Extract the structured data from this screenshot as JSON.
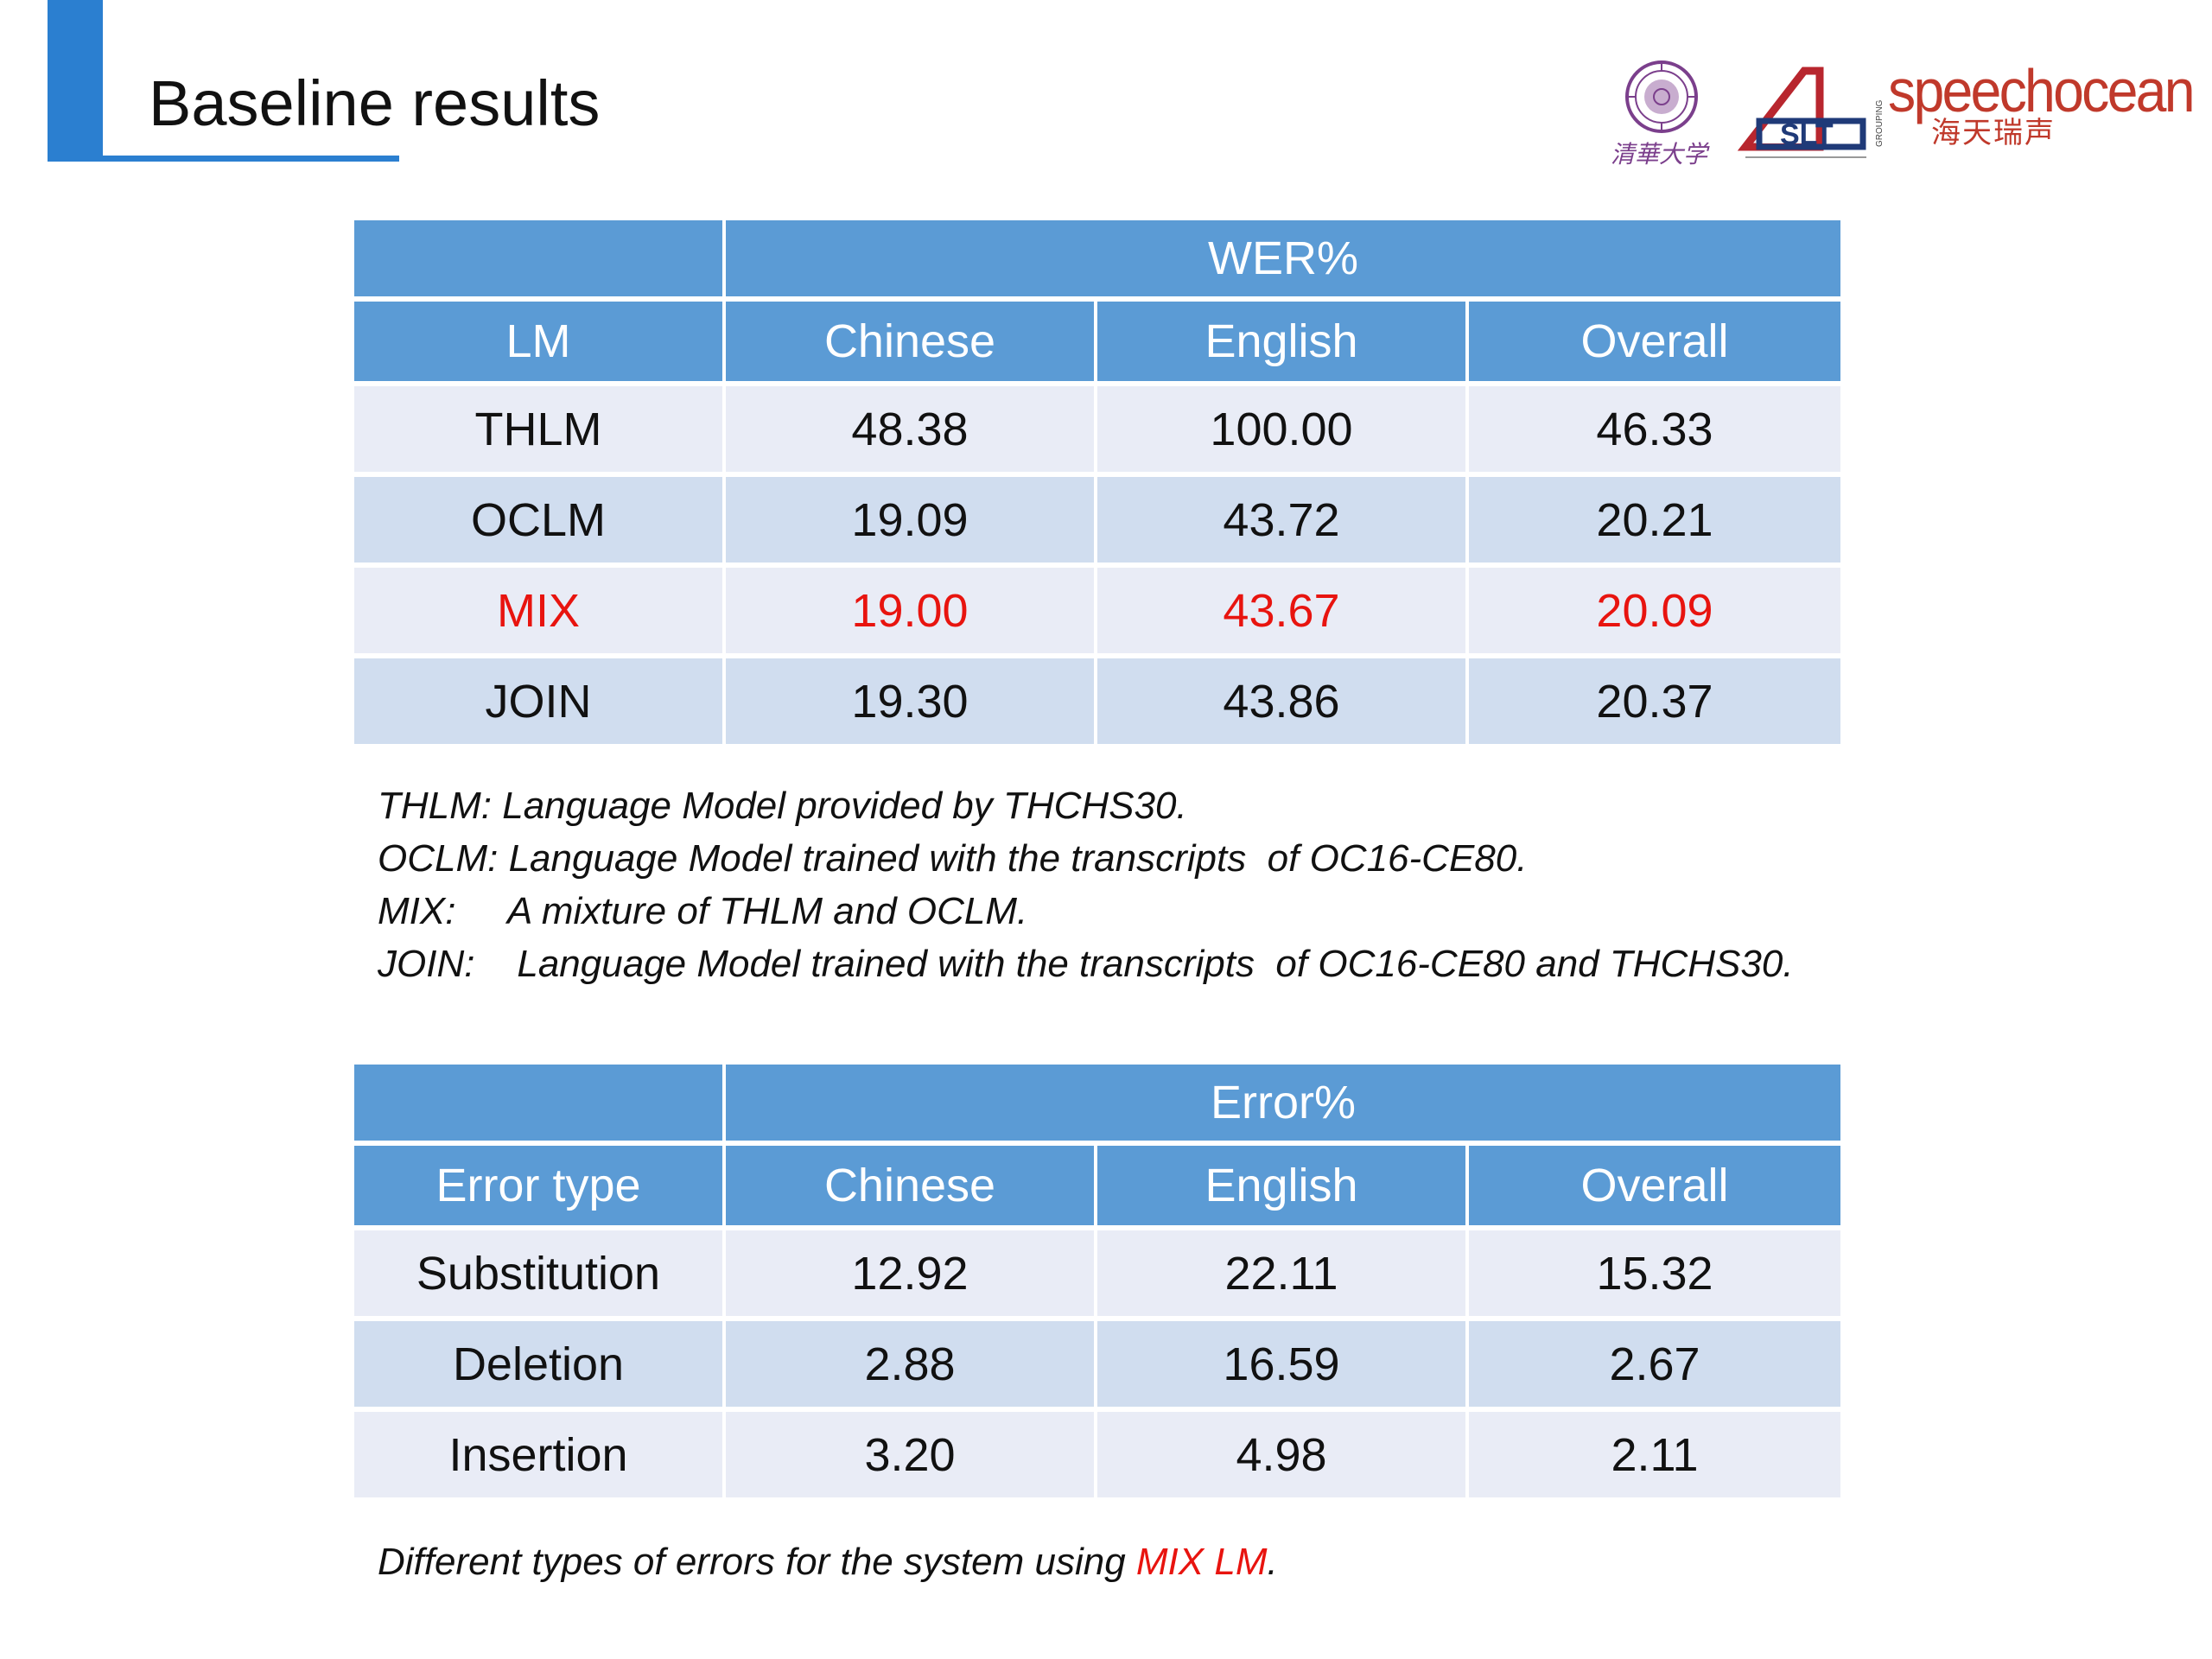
{
  "slide": {
    "title": "Baseline results",
    "accent_color": "#2b7fd0"
  },
  "logos": {
    "tsinghua": {
      "icon": "tsinghua-seal-icon",
      "text": "清華大学"
    },
    "slt": {
      "icon": "slt-grouping-logo-icon",
      "text": "SLT",
      "side_text": "GROUPING"
    },
    "speechocean": {
      "icon": "speechocean-logo-icon",
      "text": "speechocean",
      "sub_text": "海天瑞声"
    }
  },
  "wer_table": {
    "group_header": "WER%",
    "columns": [
      "LM",
      "Chinese",
      "English",
      "Overall"
    ],
    "rows": [
      {
        "label": "THLM",
        "values": [
          "48.38",
          "100.00",
          "46.33"
        ],
        "highlight": false
      },
      {
        "label": "OCLM",
        "values": [
          "19.09",
          "43.72",
          "20.21"
        ],
        "highlight": false
      },
      {
        "label": "MIX",
        "values": [
          "19.00",
          "43.67",
          "20.09"
        ],
        "highlight": true
      },
      {
        "label": "JOIN",
        "values": [
          "19.30",
          "43.86",
          "20.37"
        ],
        "highlight": false
      }
    ]
  },
  "notes": [
    {
      "key": "THLM:",
      "text": " Language Model provided by THCHS30."
    },
    {
      "key": "OCLM:",
      "text": " Language Model trained with the transcripts  of OC16-CE80."
    },
    {
      "key": "MIX:",
      "text": "     A mixture of THLM and OCLM."
    },
    {
      "key": "JOIN:",
      "text": "    Language Model trained with the transcripts  of OC16-CE80 and THCHS30."
    }
  ],
  "error_table": {
    "group_header": "Error%",
    "columns": [
      "Error type",
      "Chinese",
      "English",
      "Overall"
    ],
    "rows": [
      {
        "label": "Substitution",
        "values": [
          "12.92",
          "22.11",
          "15.32"
        ]
      },
      {
        "label": "Deletion",
        "values": [
          "2.88",
          "16.59",
          "2.67"
        ]
      },
      {
        "label": "Insertion",
        "values": [
          "3.20",
          "4.98",
          "2.11"
        ]
      }
    ]
  },
  "caption": {
    "prefix": "Different types of errors for the system using ",
    "highlight": "MIX LM",
    "suffix": "."
  },
  "colors": {
    "header_blue": "#5b9bd5",
    "row_light": "#e9ecf6",
    "row_dark": "#d0ddef",
    "highlight_red": "#e8140f"
  }
}
